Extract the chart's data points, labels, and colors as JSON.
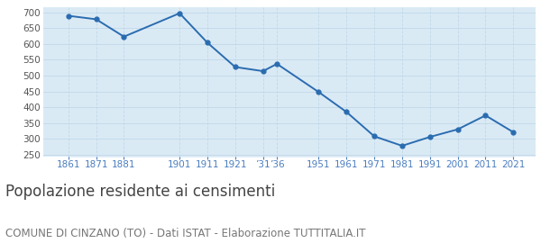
{
  "years": [
    1861,
    1871,
    1881,
    1901,
    1911,
    1921,
    1931,
    1936,
    1951,
    1961,
    1971,
    1981,
    1991,
    2001,
    2011,
    2021
  ],
  "population": [
    689,
    678,
    623,
    697,
    604,
    527,
    514,
    537,
    448,
    385,
    308,
    278,
    306,
    330,
    374,
    321
  ],
  "line_color": "#2b6cb0",
  "fill_color": "#daeaf5",
  "marker_color": "#2b6cb0",
  "bg_color": "#ffffff",
  "grid_color": "#c0d8e8",
  "title": "Popolazione residente ai censimenti",
  "subtitle": "COMUNE DI CINZANO (TO) - Dati ISTAT - Elaborazione TUTTITALIA.IT",
  "tick_label_color": "#4a7dbf",
  "ylim": [
    245,
    715
  ],
  "yticks": [
    250,
    300,
    350,
    400,
    450,
    500,
    550,
    600,
    650,
    700
  ],
  "title_fontsize": 12,
  "subtitle_fontsize": 8.5,
  "x_tick_positions": [
    1861,
    1871,
    1881,
    1901,
    1911,
    1921,
    1931,
    1936,
    1951,
    1961,
    1971,
    1981,
    1991,
    2001,
    2011,
    2021
  ],
  "x_tick_labels": [
    "1861",
    "1871",
    "1881",
    "1901",
    "1911",
    "1921",
    "’31",
    "’36",
    "1951",
    "1961",
    "1971",
    "1981",
    "1991",
    "2001",
    "2011",
    "2021"
  ],
  "xlim": [
    1852,
    2029
  ]
}
